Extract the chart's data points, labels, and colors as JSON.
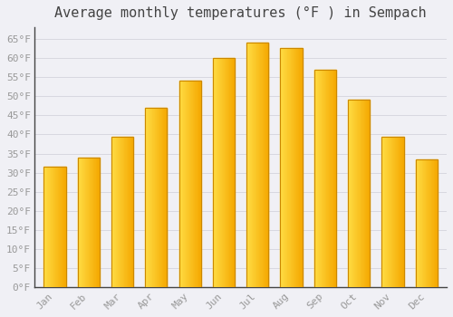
{
  "title": "Average monthly temperatures (°F ) in Sempach",
  "months": [
    "Jan",
    "Feb",
    "Mar",
    "Apr",
    "May",
    "Jun",
    "Jul",
    "Aug",
    "Sep",
    "Oct",
    "Nov",
    "Dec"
  ],
  "values": [
    31.5,
    34.0,
    39.5,
    47.0,
    54.0,
    60.0,
    64.0,
    62.5,
    57.0,
    49.0,
    39.5,
    33.5
  ],
  "bar_color_left": "#FFDD44",
  "bar_color_right": "#F5A800",
  "bar_edge_color": "#CC8800",
  "background_color": "#f0f0f5",
  "plot_bg_color": "#f0f0f5",
  "grid_color": "#d8d8e0",
  "ylim": [
    0,
    68
  ],
  "ytick_step": 5,
  "title_fontsize": 11,
  "tick_fontsize": 8,
  "tick_color": "#999999",
  "title_color": "#444444",
  "spine_color": "#444444",
  "font_family": "monospace"
}
